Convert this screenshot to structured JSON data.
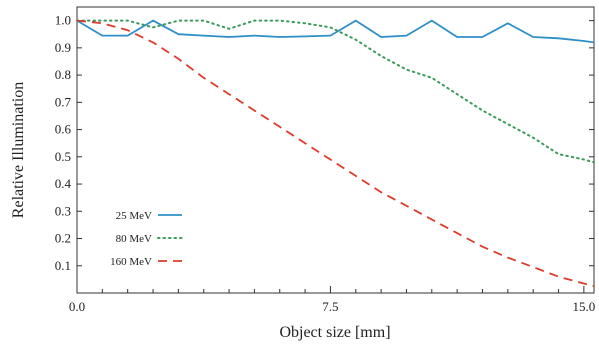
{
  "chart_data": {
    "type": "line",
    "title": "",
    "xlabel": "Object size [mm]",
    "ylabel": "Relative Illumination",
    "xlim": [
      0,
      15.3
    ],
    "ylim": [
      0,
      1.05
    ],
    "x_ticks": [
      0,
      7.5,
      15
    ],
    "x_tick_labels": [
      "0.0",
      "7.5",
      "15.0"
    ],
    "x_minor_ticks": [
      0.75,
      1.5,
      2.25,
      3.0,
      3.75,
      4.5,
      5.25,
      6.0,
      6.75,
      8.25,
      9.0,
      9.75,
      10.5,
      11.25,
      12.0,
      12.75,
      13.5,
      14.25
    ],
    "y_ticks": [
      0.1,
      0.2,
      0.3,
      0.4,
      0.5,
      0.6,
      0.7,
      0.8,
      0.9,
      1.0
    ],
    "y_tick_labels": [
      "0.1",
      "0.2",
      "0.3",
      "0.4",
      "0.5",
      "0.6",
      "0.7",
      "0.8",
      "0.9",
      "1.0"
    ],
    "grid": false,
    "legend_position": "bottom-left",
    "series": [
      {
        "name": "25 MeV",
        "color": "#2e8fc8",
        "style": "solid",
        "x": [
          0,
          0.75,
          1.5,
          2.25,
          3.0,
          3.75,
          4.5,
          5.25,
          6.0,
          6.75,
          7.5,
          8.25,
          9.0,
          9.75,
          10.5,
          11.25,
          12.0,
          12.75,
          13.5,
          14.25,
          15.0,
          15.3
        ],
        "y": [
          1.0,
          0.945,
          0.945,
          1.0,
          0.95,
          0.945,
          0.94,
          0.945,
          0.94,
          0.942,
          0.945,
          1.0,
          0.94,
          0.945,
          1.0,
          0.94,
          0.94,
          0.99,
          0.94,
          0.935,
          0.925,
          0.92
        ]
      },
      {
        "name": "80 MeV",
        "color": "#3a9a5b",
        "style": "dotted",
        "x": [
          0,
          0.75,
          1.5,
          2.25,
          3.0,
          3.75,
          4.5,
          5.25,
          6.0,
          6.75,
          7.5,
          8.25,
          9.0,
          9.75,
          10.5,
          11.25,
          12.0,
          12.75,
          13.5,
          14.25,
          15.0,
          15.3
        ],
        "y": [
          1.0,
          1.0,
          1.0,
          0.975,
          1.0,
          1.0,
          0.97,
          1.0,
          1.0,
          0.99,
          0.975,
          0.93,
          0.87,
          0.82,
          0.79,
          0.73,
          0.67,
          0.62,
          0.57,
          0.51,
          0.49,
          0.48
        ]
      },
      {
        "name": "160 MeV",
        "color": "#dd3b2c",
        "style": "dashed",
        "x": [
          0,
          0.75,
          1.5,
          2.25,
          3.0,
          3.75,
          4.5,
          5.25,
          6.0,
          6.75,
          7.5,
          8.25,
          9.0,
          9.75,
          10.5,
          11.25,
          12.0,
          12.75,
          13.5,
          14.25,
          15.0,
          15.3
        ],
        "y": [
          1.0,
          0.99,
          0.965,
          0.92,
          0.86,
          0.79,
          0.73,
          0.67,
          0.61,
          0.55,
          0.49,
          0.43,
          0.37,
          0.32,
          0.27,
          0.22,
          0.17,
          0.13,
          0.095,
          0.06,
          0.035,
          0.025
        ]
      }
    ]
  }
}
